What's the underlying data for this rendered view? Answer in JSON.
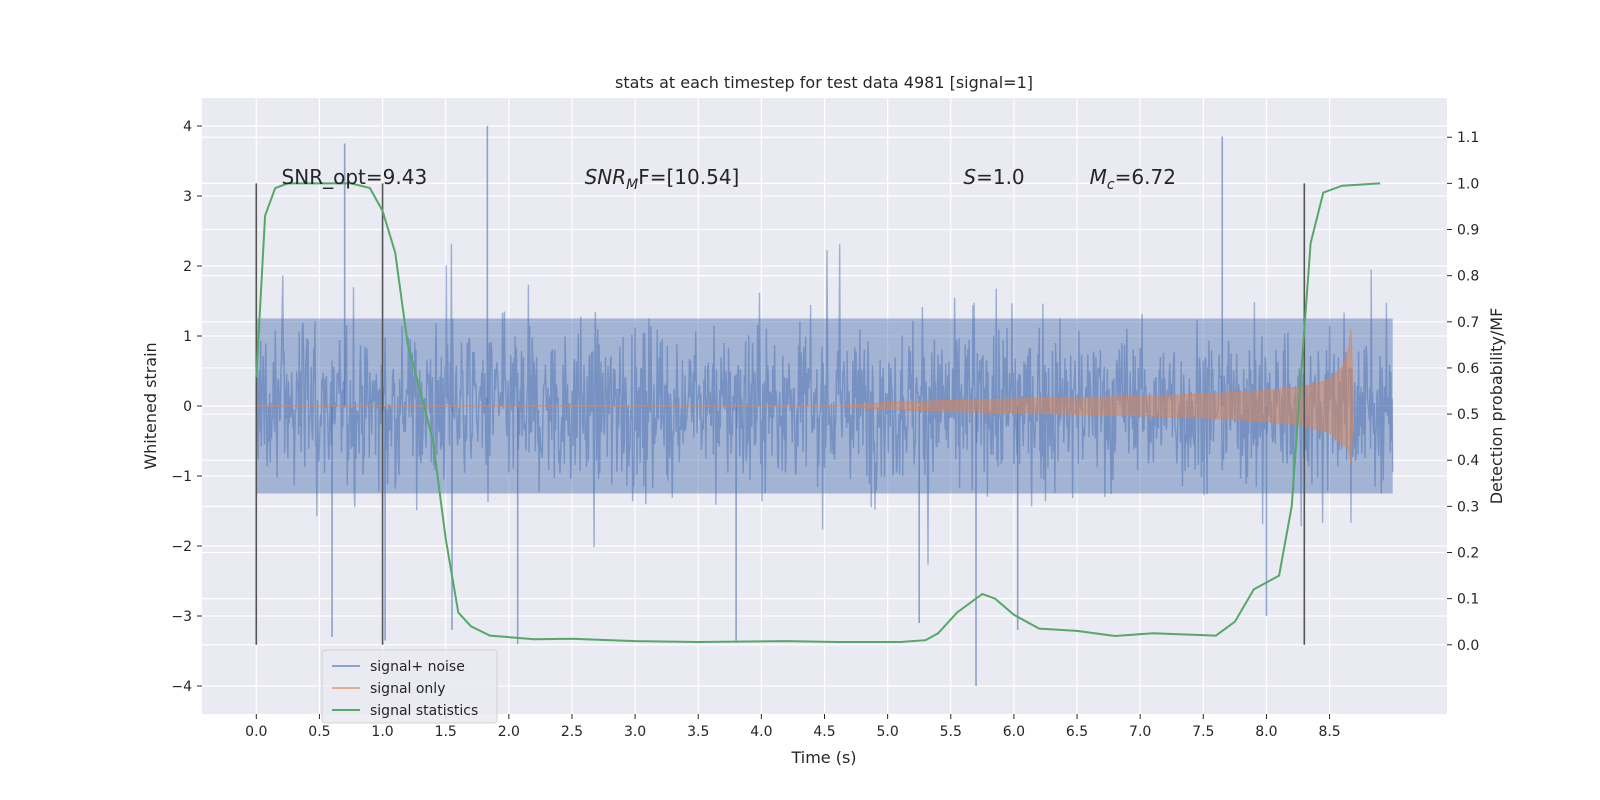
{
  "chart_data": {
    "type": "line",
    "title": "stats at each timestep for test data 4981 [signal=1]",
    "xlabel": "Time (s)",
    "ylabel": "Whitened strain",
    "y2label": "Detection probability/MF",
    "xlim": [
      -0.43,
      9.43
    ],
    "ylim": [
      -4.4,
      4.4
    ],
    "y2lim": [
      -0.15,
      1.185
    ],
    "xticks": [
      0.0,
      0.5,
      1.0,
      1.5,
      2.0,
      2.5,
      3.0,
      3.5,
      4.0,
      4.5,
      5.0,
      5.5,
      6.0,
      6.5,
      7.0,
      7.5,
      8.0,
      8.5
    ],
    "xtick_labels": [
      "0.0",
      "0.5",
      "1.0",
      "1.5",
      "2.0",
      "2.5",
      "3.0",
      "3.5",
      "4.0",
      "4.5",
      "5.0",
      "5.5",
      "6.0",
      "6.5",
      "7.0",
      "7.5",
      "8.0",
      "8.5"
    ],
    "yticks": [
      -4,
      -3,
      -2,
      -1,
      0,
      1,
      2,
      3,
      4
    ],
    "ytick_labels": [
      "−4",
      "−3",
      "−2",
      "−1",
      "0",
      "1",
      "2",
      "3",
      "4"
    ],
    "y2ticks": [
      0.0,
      0.1,
      0.2,
      0.3,
      0.4,
      0.5,
      0.6,
      0.7,
      0.8,
      0.9,
      1.0,
      1.1
    ],
    "y2tick_labels": [
      "0.0",
      "0.1",
      "0.2",
      "0.3",
      "0.4",
      "0.5",
      "0.6",
      "0.7",
      "0.8",
      "0.9",
      "1.0",
      "1.1"
    ],
    "grid": true,
    "legend_position": "bottom-left",
    "annotations": [
      {
        "label": "SNR_opt=9.43",
        "x": 0.2
      },
      {
        "label": "SNR",
        "sub": "M",
        "italic": true,
        "rest": "F=[10.54]",
        "x": 2.6
      },
      {
        "label": "S",
        "italic": true,
        "rest": "=1.0",
        "x": 5.6
      },
      {
        "label": "M",
        "sub": "c",
        "italic": true,
        "rest": "=6.72",
        "x": 6.6
      }
    ],
    "vertical_markers_x": [
      0.0,
      1.0,
      8.3
    ],
    "series": [
      {
        "name": "signal+ noise",
        "color": "#4c72b0",
        "x_range": [
          0.0,
          9.0
        ],
        "description_free": true,
        "peaks": [
          {
            "x": 0.7,
            "y": 3.75
          },
          {
            "x": 1.83,
            "y": 4.0
          },
          {
            "x": 7.65,
            "y": 3.85
          },
          {
            "x": 5.7,
            "y": -4.0
          },
          {
            "x": 2.07,
            "y": -3.4
          },
          {
            "x": 3.8,
            "y": -3.35
          },
          {
            "x": 0.6,
            "y": -3.3
          },
          {
            "x": 1.02,
            "y": -3.35
          },
          {
            "x": 5.25,
            "y": -3.1
          },
          {
            "x": 6.03,
            "y": -3.2
          },
          {
            "x": 1.55,
            "y": -3.2
          },
          {
            "x": 8.0,
            "y": -3.0
          }
        ]
      },
      {
        "name": "signal only",
        "color": "#dd8452",
        "envelope_start_x": 4.6,
        "envelope_peak_x": 8.67,
        "envelope_points": [
          {
            "x": 4.6,
            "y": 0.0
          },
          {
            "x": 5.0,
            "y": 0.05
          },
          {
            "x": 5.5,
            "y": 0.08
          },
          {
            "x": 6.0,
            "y": 0.1
          },
          {
            "x": 6.5,
            "y": 0.12
          },
          {
            "x": 7.0,
            "y": 0.14
          },
          {
            "x": 7.5,
            "y": 0.17
          },
          {
            "x": 8.0,
            "y": 0.22
          },
          {
            "x": 8.3,
            "y": 0.28
          },
          {
            "x": 8.5,
            "y": 0.38
          },
          {
            "x": 8.6,
            "y": 0.55
          },
          {
            "x": 8.65,
            "y": 0.8
          },
          {
            "x": 8.67,
            "y": 1.1
          },
          {
            "x": 8.69,
            "y": 0.0
          }
        ]
      },
      {
        "name": "signal statistics",
        "color": "#55a868",
        "axis": "right",
        "points": [
          {
            "x": 0.0,
            "y": 0.58
          },
          {
            "x": 0.07,
            "y": 0.93
          },
          {
            "x": 0.15,
            "y": 0.99
          },
          {
            "x": 0.25,
            "y": 1.0
          },
          {
            "x": 0.5,
            "y": 1.0
          },
          {
            "x": 0.75,
            "y": 1.0
          },
          {
            "x": 0.9,
            "y": 0.99
          },
          {
            "x": 1.0,
            "y": 0.94
          },
          {
            "x": 1.1,
            "y": 0.85
          },
          {
            "x": 1.2,
            "y": 0.65
          },
          {
            "x": 1.3,
            "y": 0.55
          },
          {
            "x": 1.4,
            "y": 0.44
          },
          {
            "x": 1.5,
            "y": 0.23
          },
          {
            "x": 1.6,
            "y": 0.07
          },
          {
            "x": 1.7,
            "y": 0.04
          },
          {
            "x": 1.85,
            "y": 0.02
          },
          {
            "x": 2.2,
            "y": 0.012
          },
          {
            "x": 2.5,
            "y": 0.013
          },
          {
            "x": 3.0,
            "y": 0.008
          },
          {
            "x": 3.5,
            "y": 0.006
          },
          {
            "x": 4.2,
            "y": 0.008
          },
          {
            "x": 4.6,
            "y": 0.006
          },
          {
            "x": 5.1,
            "y": 0.006
          },
          {
            "x": 5.3,
            "y": 0.01
          },
          {
            "x": 5.4,
            "y": 0.025
          },
          {
            "x": 5.55,
            "y": 0.07
          },
          {
            "x": 5.75,
            "y": 0.11
          },
          {
            "x": 5.85,
            "y": 0.1
          },
          {
            "x": 6.0,
            "y": 0.065
          },
          {
            "x": 6.2,
            "y": 0.035
          },
          {
            "x": 6.5,
            "y": 0.03
          },
          {
            "x": 6.8,
            "y": 0.019
          },
          {
            "x": 7.1,
            "y": 0.025
          },
          {
            "x": 7.6,
            "y": 0.02
          },
          {
            "x": 7.75,
            "y": 0.05
          },
          {
            "x": 7.9,
            "y": 0.12
          },
          {
            "x": 8.0,
            "y": 0.135
          },
          {
            "x": 8.1,
            "y": 0.15
          },
          {
            "x": 8.2,
            "y": 0.3
          },
          {
            "x": 8.27,
            "y": 0.57
          },
          {
            "x": 8.35,
            "y": 0.87
          },
          {
            "x": 8.45,
            "y": 0.98
          },
          {
            "x": 8.6,
            "y": 0.995
          },
          {
            "x": 8.9,
            "y": 1.0
          }
        ]
      }
    ],
    "legend": [
      {
        "label": "signal+ noise",
        "color": "#4c72b0"
      },
      {
        "label": "signal only",
        "color": "#dd8452"
      },
      {
        "label": "signal statistics",
        "color": "#55a868"
      }
    ],
    "colors": {
      "background": "#eaeaf2",
      "grid": "#ffffff",
      "marker": "#555555"
    }
  }
}
